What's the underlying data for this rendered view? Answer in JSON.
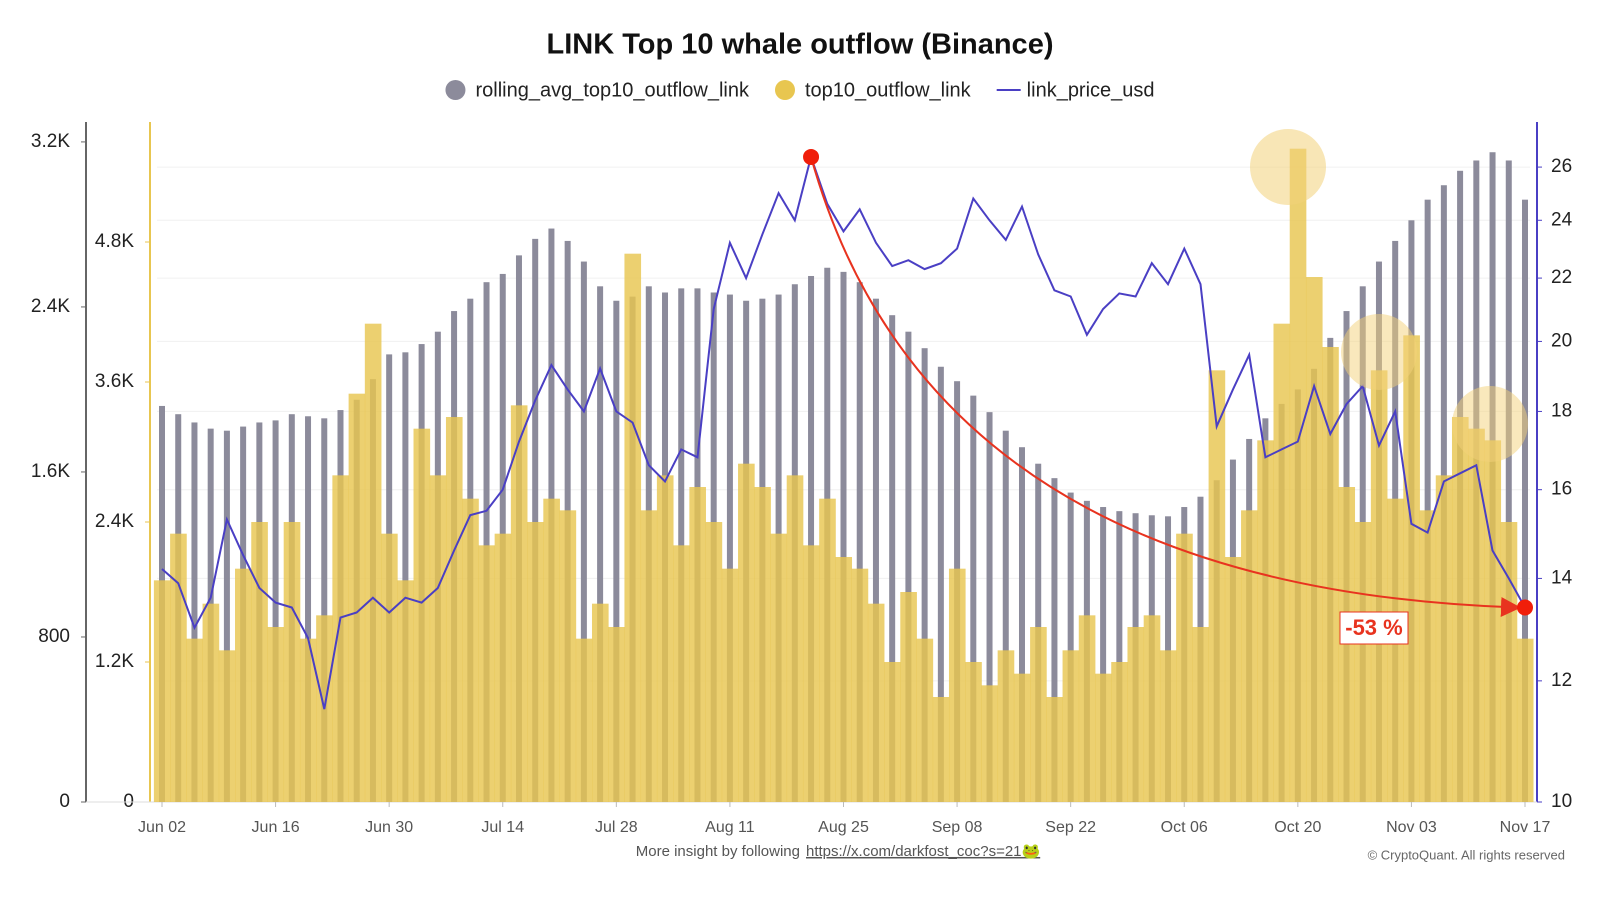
{
  "chart_data": {
    "type": "combo",
    "title": "LINK Top 10 whale outflow (Binance)",
    "categories": [
      "Jun 02",
      null,
      null,
      null,
      null,
      null,
      null,
      "Jun 16",
      null,
      null,
      null,
      null,
      null,
      null,
      "Jun 30",
      null,
      null,
      null,
      null,
      null,
      null,
      "Jul 14",
      null,
      null,
      null,
      null,
      null,
      null,
      "Jul 28",
      null,
      null,
      null,
      null,
      null,
      null,
      "Aug 11",
      null,
      null,
      null,
      null,
      null,
      null,
      "Aug 25",
      null,
      null,
      null,
      null,
      null,
      null,
      "Sep 08",
      null,
      null,
      null,
      null,
      null,
      null,
      "Sep 22",
      null,
      null,
      null,
      null,
      null,
      null,
      "Oct 06",
      null,
      null,
      null,
      null,
      null,
      null,
      "Oct 20",
      null,
      null,
      null,
      null,
      null,
      null,
      "Nov 03",
      null,
      null,
      null,
      null,
      null,
      null,
      "Nov 17"
    ],
    "series": [
      {
        "name": "rolling_avg_top10_outflow_link",
        "type": "bar",
        "axis": "y",
        "color": "#8c8b9b",
        "values": [
          1920,
          1880,
          1840,
          1810,
          1800,
          1820,
          1840,
          1850,
          1880,
          1870,
          1860,
          1900,
          1950,
          2050,
          2170,
          2180,
          2220,
          2280,
          2380,
          2440,
          2520,
          2560,
          2650,
          2730,
          2780,
          2720,
          2620,
          2500,
          2430,
          2450,
          2500,
          2470,
          2490,
          2490,
          2470,
          2460,
          2430,
          2440,
          2460,
          2510,
          2550,
          2590,
          2570,
          2520,
          2440,
          2360,
          2280,
          2200,
          2110,
          2040,
          1970,
          1890,
          1800,
          1720,
          1640,
          1570,
          1500,
          1460,
          1430,
          1410,
          1400,
          1390,
          1385,
          1430,
          1480,
          1560,
          1660,
          1760,
          1860,
          1930,
          2000,
          2100,
          2250,
          2380,
          2500,
          2620,
          2720,
          2820,
          2920,
          2990,
          3060,
          3110,
          3150,
          3110,
          2920
        ]
      },
      {
        "name": "top10_outflow_link",
        "type": "area",
        "axis": "y2",
        "color": "#e8c650",
        "values": [
          1900,
          2300,
          1400,
          1700,
          1300,
          2000,
          2400,
          1500,
          2400,
          1400,
          1600,
          2800,
          3500,
          4100,
          2300,
          1900,
          3200,
          2800,
          3300,
          2600,
          2200,
          2300,
          3400,
          2400,
          2600,
          2500,
          1400,
          1700,
          1500,
          4700,
          2500,
          2800,
          2200,
          2700,
          2400,
          2000,
          2900,
          2700,
          2300,
          2800,
          2200,
          2600,
          2100,
          2000,
          1700,
          1200,
          1800,
          1400,
          900,
          2000,
          1200,
          1000,
          1300,
          1100,
          1500,
          900,
          1300,
          1600,
          1100,
          1200,
          1500,
          1600,
          1300,
          2300,
          1500,
          3700,
          2100,
          2500,
          3100,
          4100,
          5600,
          4500,
          3900,
          2700,
          2400,
          3700,
          2600,
          4000,
          2500,
          2800,
          3300,
          3200,
          3100,
          2400,
          1400
        ]
      },
      {
        "name": "link_price_usd",
        "type": "line",
        "axis": "y3",
        "color": "#4a3fc4",
        "values": [
          14.2,
          13.9,
          13.0,
          13.6,
          15.3,
          14.5,
          13.8,
          13.5,
          13.4,
          12.8,
          11.5,
          13.2,
          13.3,
          13.6,
          13.3,
          13.6,
          13.5,
          13.8,
          14.6,
          15.4,
          15.5,
          16.0,
          17.2,
          18.3,
          19.3,
          18.6,
          18.0,
          19.2,
          18.0,
          17.7,
          16.6,
          16.2,
          17.0,
          16.8,
          21.0,
          23.2,
          22.0,
          23.5,
          25.0,
          24.0,
          26.4,
          24.6,
          23.6,
          24.4,
          23.2,
          22.4,
          22.6,
          22.3,
          22.5,
          23.0,
          24.8,
          24.0,
          23.3,
          24.5,
          22.8,
          21.6,
          21.4,
          20.2,
          21.0,
          21.5,
          21.4,
          22.5,
          21.8,
          23.0,
          21.8,
          17.6,
          18.6,
          19.6,
          16.8,
          17.0,
          17.2,
          18.7,
          17.4,
          18.2,
          18.7,
          17.1,
          18.0,
          15.2,
          15.0,
          16.2,
          16.4,
          16.6,
          14.6,
          14.0,
          13.4
        ]
      }
    ],
    "ylim": [
      0,
      3282
    ],
    "yticks": [
      0,
      800,
      {
        "value": 1600,
        "label": "1.6K"
      },
      {
        "value": 2400,
        "label": "2.4K"
      },
      {
        "value": 3200,
        "label": "3.2K"
      }
    ],
    "y2lim": [
      0,
      5803
    ],
    "y2ticks": [
      0,
      {
        "value": 1200,
        "label": "1.2K"
      },
      {
        "value": 2400,
        "label": "2.4K"
      },
      {
        "value": 3600,
        "label": "3.6K"
      },
      {
        "value": 4800,
        "label": "4.8K"
      }
    ],
    "y3lim": [
      10,
      27.7
    ],
    "y3scale": "log",
    "y3ticks": [
      10,
      12,
      14,
      16,
      18,
      20,
      22,
      24,
      26
    ],
    "grid": true,
    "legend": "top",
    "annotation": "-53 %"
  },
  "footer": {
    "text": "More insight by following",
    "link": "https://x.com/darkfost_coc?s=21🐸",
    "copyright": "© CryptoQuant. All rights reserved"
  }
}
